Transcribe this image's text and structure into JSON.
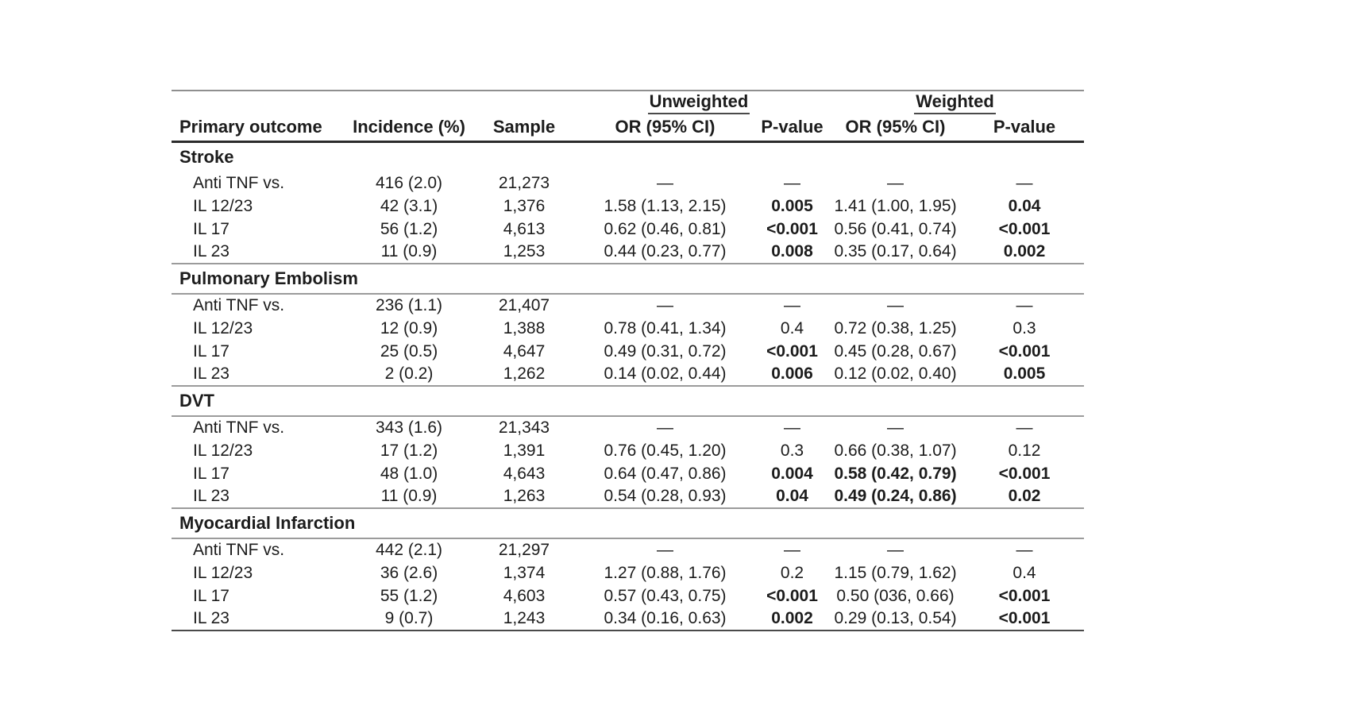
{
  "table": {
    "group_headers": {
      "unweighted": "Unweighted",
      "weighted": "Weighted"
    },
    "columns": [
      "Primary outcome",
      "Incidence (%)",
      "Sample",
      "OR (95% CI)",
      "P-value",
      "OR (95% CI)",
      "P-value"
    ],
    "dash": "—",
    "sections": [
      {
        "name": "Stroke",
        "ruled": false,
        "rows": [
          {
            "outcome": "Anti TNF vs.",
            "incidence": "416 (2.0)",
            "sample": "21,273",
            "or_u": "—",
            "p_u": "—",
            "or_w": "—",
            "p_w": "—",
            "bold": []
          },
          {
            "outcome": "IL 12/23",
            "incidence": "42 (3.1)",
            "sample": "1,376",
            "or_u": "1.58 (1.13, 2.15)",
            "p_u": "0.005",
            "or_w": "1.41 (1.00, 1.95)",
            "p_w": "0.04",
            "bold": [
              "p_u",
              "p_w"
            ]
          },
          {
            "outcome": "IL 17",
            "incidence": "56 (1.2)",
            "sample": "4,613",
            "or_u": "0.62 (0.46, 0.81)",
            "p_u": "<0.001",
            "or_w": "0.56 (0.41, 0.74)",
            "p_w": "<0.001",
            "bold": [
              "p_u",
              "p_w"
            ]
          },
          {
            "outcome": "IL 23",
            "incidence": "11 (0.9)",
            "sample": "1,253",
            "or_u": "0.44 (0.23, 0.77)",
            "p_u": "0.008",
            "or_w": "0.35 (0.17, 0.64)",
            "p_w": "0.002",
            "bold": [
              "p_u",
              "p_w"
            ]
          }
        ]
      },
      {
        "name": "Pulmonary Embolism",
        "ruled": true,
        "rows": [
          {
            "outcome": "Anti TNF vs.",
            "incidence": "236 (1.1)",
            "sample": "21,407",
            "or_u": "—",
            "p_u": "—",
            "or_w": "—",
            "p_w": "—",
            "bold": []
          },
          {
            "outcome": "IL 12/23",
            "incidence": "12 (0.9)",
            "sample": "1,388",
            "or_u": "0.78 (0.41, 1.34)",
            "p_u": "0.4",
            "or_w": "0.72 (0.38, 1.25)",
            "p_w": "0.3",
            "bold": []
          },
          {
            "outcome": "IL 17",
            "incidence": "25 (0.5)",
            "sample": "4,647",
            "or_u": "0.49 (0.31, 0.72)",
            "p_u": "<0.001",
            "or_w": "0.45 (0.28, 0.67)",
            "p_w": "<0.001",
            "bold": [
              "p_u",
              "p_w"
            ]
          },
          {
            "outcome": "IL 23",
            "incidence": "2 (0.2)",
            "sample": "1,262",
            "or_u": "0.14 (0.02, 0.44)",
            "p_u": "0.006",
            "or_w": "0.12 (0.02, 0.40)",
            "p_w": "0.005",
            "bold": [
              "p_u",
              "p_w"
            ]
          }
        ]
      },
      {
        "name": "DVT",
        "ruled": true,
        "rows": [
          {
            "outcome": "Anti TNF vs.",
            "incidence": "343 (1.6)",
            "sample": "21,343",
            "or_u": "—",
            "p_u": "—",
            "or_w": "—",
            "p_w": "—",
            "bold": []
          },
          {
            "outcome": "IL 12/23",
            "incidence": "17 (1.2)",
            "sample": "1,391",
            "or_u": "0.76 (0.45, 1.20)",
            "p_u": "0.3",
            "or_w": "0.66 (0.38, 1.07)",
            "p_w": "0.12",
            "bold": []
          },
          {
            "outcome": "IL 17",
            "incidence": "48 (1.0)",
            "sample": "4,643",
            "or_u": "0.64 (0.47, 0.86)",
            "p_u": "0.004",
            "or_w": "0.58 (0.42, 0.79)",
            "p_w": "<0.001",
            "bold": [
              "p_u",
              "or_w",
              "p_w"
            ]
          },
          {
            "outcome": "IL 23",
            "incidence": "11 (0.9)",
            "sample": "1,263",
            "or_u": "0.54 (0.28, 0.93)",
            "p_u": "0.04",
            "or_w": "0.49 (0.24, 0.86)",
            "p_w": "0.02",
            "bold": [
              "p_u",
              "or_w",
              "p_w"
            ]
          }
        ]
      },
      {
        "name": "Myocardial Infarction",
        "ruled": true,
        "rows": [
          {
            "outcome": "Anti TNF vs.",
            "incidence": "442 (2.1)",
            "sample": "21,297",
            "or_u": "—",
            "p_u": "—",
            "or_w": "—",
            "p_w": "—",
            "bold": []
          },
          {
            "outcome": "IL 12/23",
            "incidence": "36 (2.6)",
            "sample": "1,374",
            "or_u": "1.27 (0.88, 1.76)",
            "p_u": "0.2",
            "or_w": "1.15 (0.79, 1.62)",
            "p_w": "0.4",
            "bold": []
          },
          {
            "outcome": "IL 17",
            "incidence": "55 (1.2)",
            "sample": "4,603",
            "or_u": "0.57 (0.43, 0.75)",
            "p_u": "<0.001",
            "or_w": "0.50 (036, 0.66)",
            "p_w": "<0.001",
            "bold": [
              "p_u",
              "p_w"
            ]
          },
          {
            "outcome": "IL 23",
            "incidence": "9 (0.7)",
            "sample": "1,243",
            "or_u": "0.34 (0.16, 0.63)",
            "p_u": "0.002",
            "or_w": "0.29 (0.13, 0.54)",
            "p_w": "<0.001",
            "bold": [
              "p_u",
              "p_w"
            ]
          }
        ]
      }
    ]
  }
}
